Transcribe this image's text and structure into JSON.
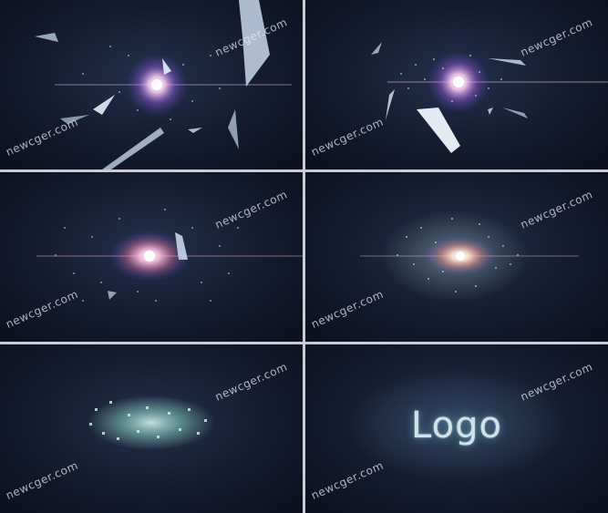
{
  "watermark": "newcger.com",
  "frames": [
    {
      "id": 1,
      "watermark_tr": "newcger.com",
      "watermark_bl": "newcger.com"
    },
    {
      "id": 2,
      "watermark_tr": "newcger.com",
      "watermark_bl": "newcger.com"
    },
    {
      "id": 3,
      "watermark_tr": "newcger.com",
      "watermark_bl": "newcger.com"
    },
    {
      "id": 4,
      "watermark_tr": "newcger.com",
      "watermark_bl": "newcger.com"
    },
    {
      "id": 5,
      "watermark_tr": "newcger.com",
      "watermark_bl": "newcger.com"
    },
    {
      "id": 6,
      "watermark_tr": "newcger.com",
      "watermark_bl": "newcger.com",
      "logo_text": "Logo"
    }
  ],
  "colors": {
    "background": "#141b30",
    "flare_core": "#ffffff",
    "flare_glow": "#ff9ad0",
    "shard": "#cfe0f2",
    "particle": "#9fd8e0",
    "logo": "#cfe3ea"
  }
}
